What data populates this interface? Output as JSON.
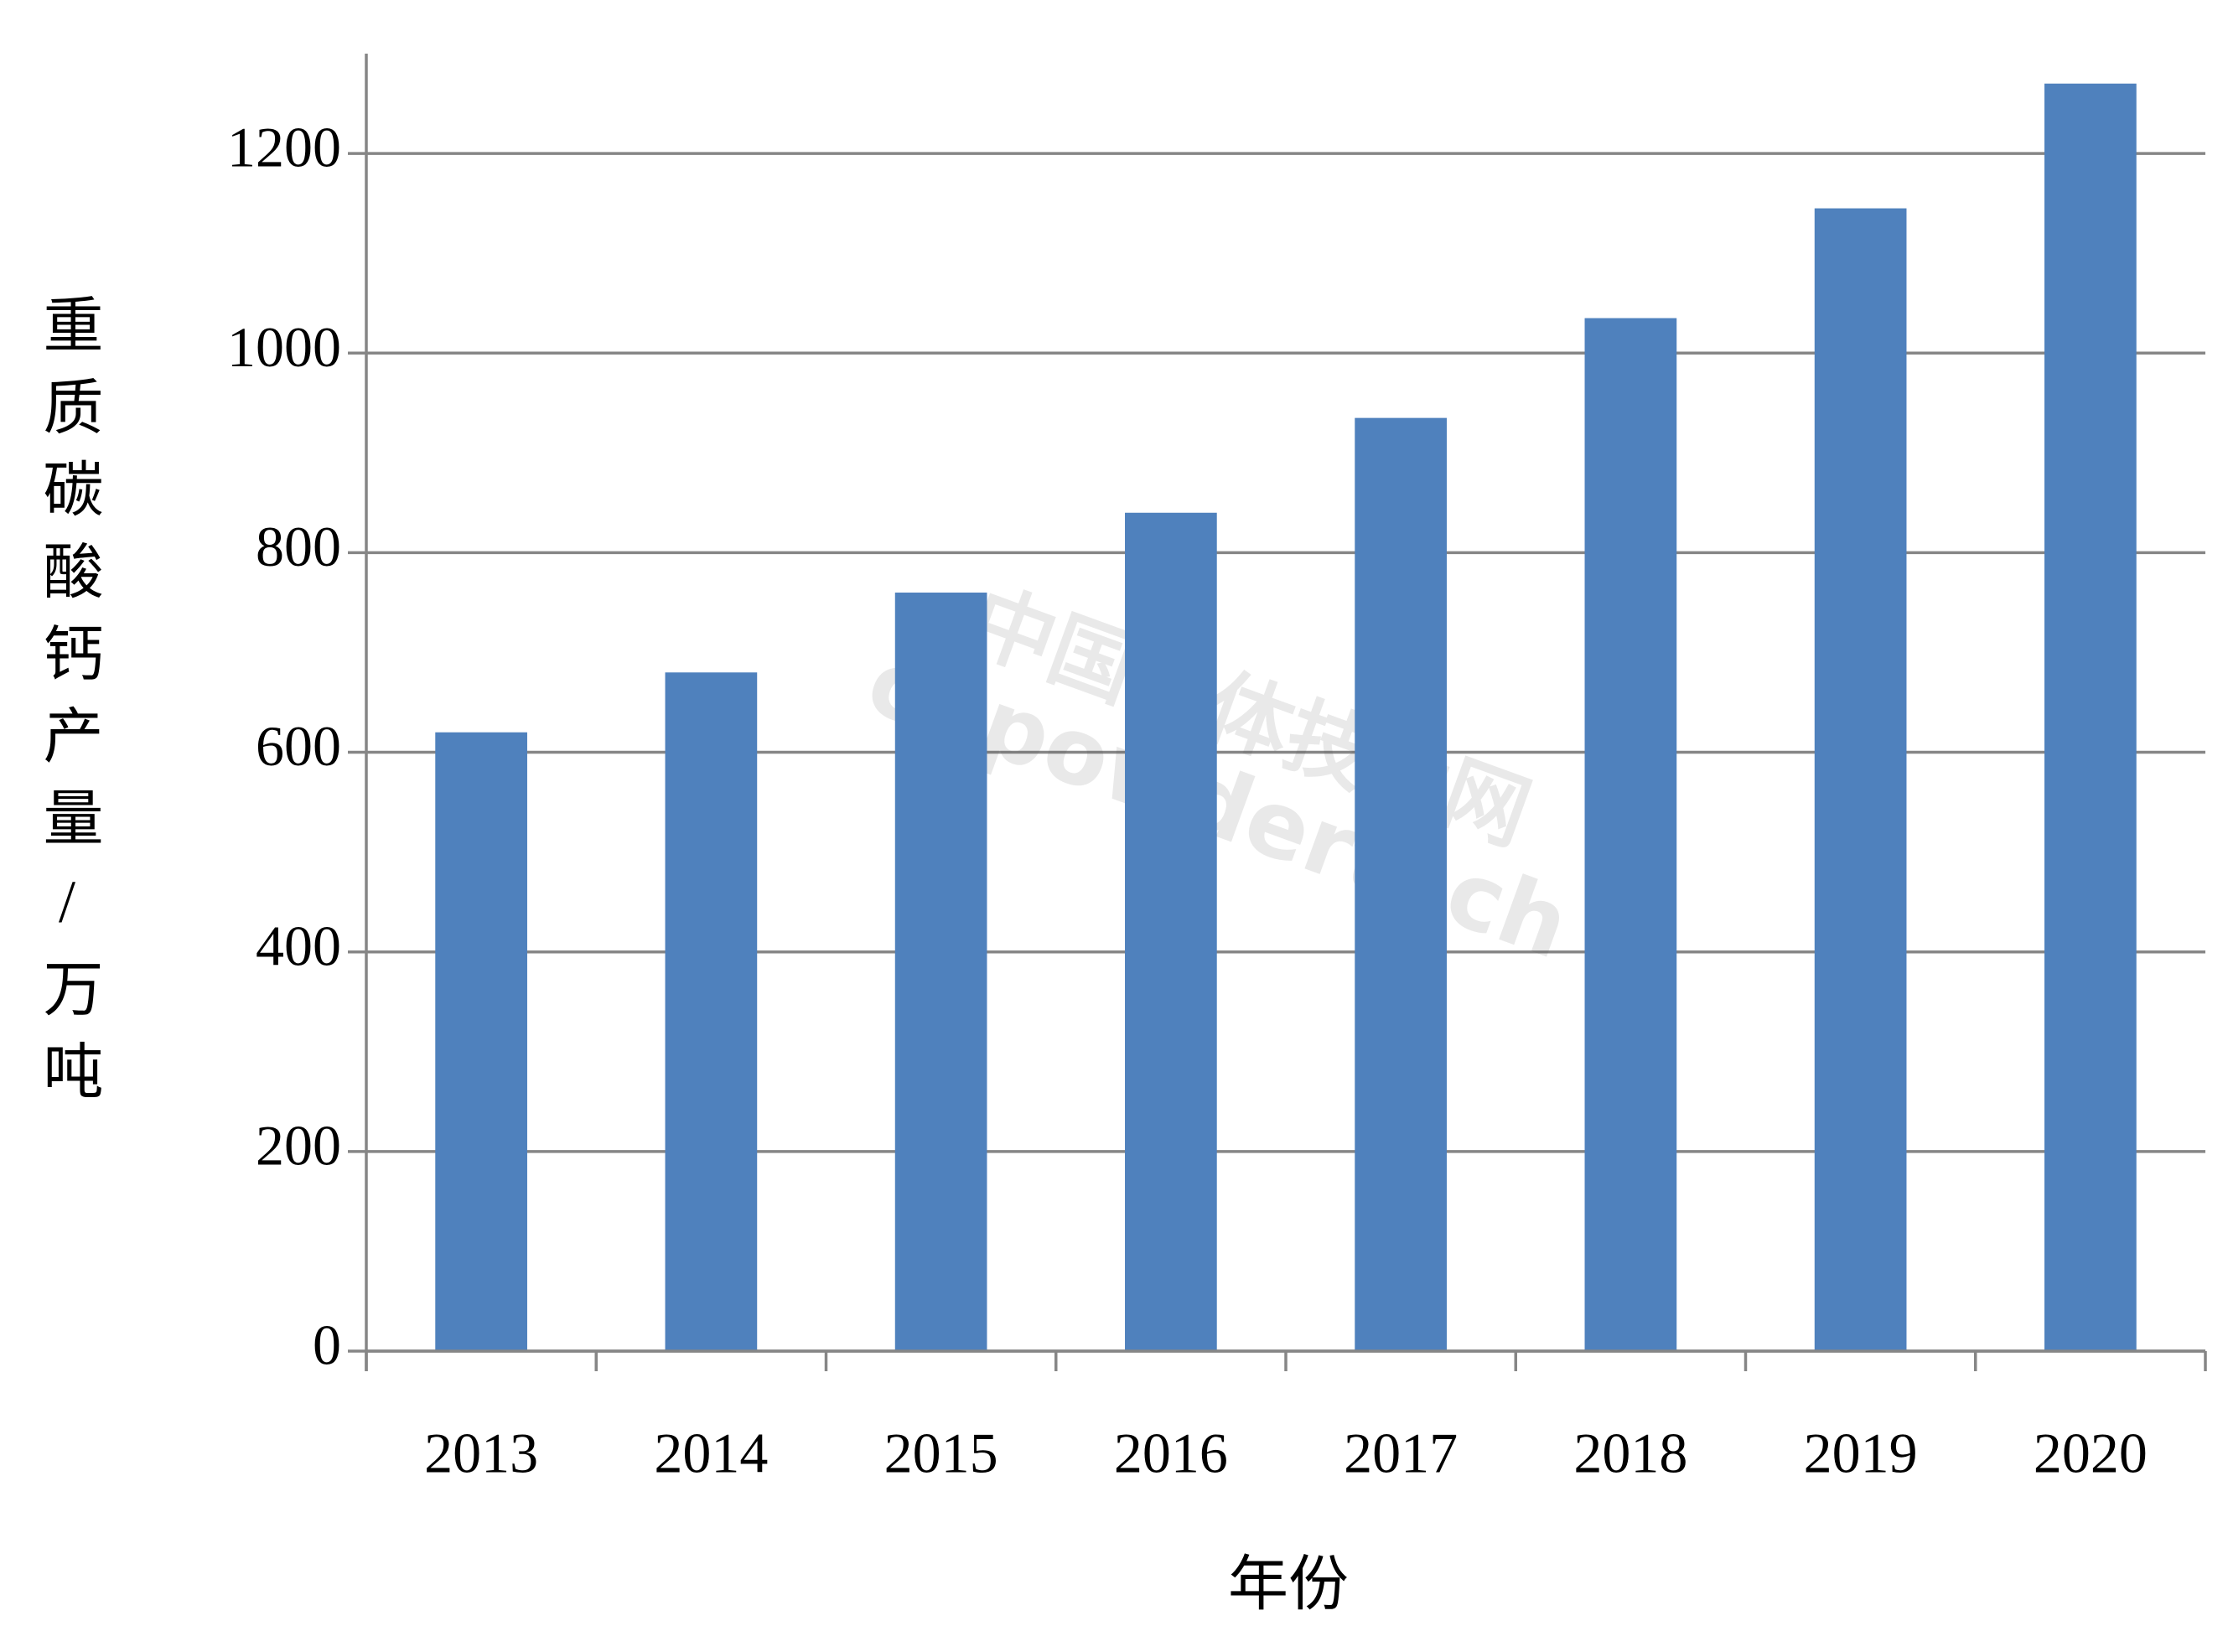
{
  "chart_data": {
    "type": "bar",
    "categories": [
      "2013",
      "2014",
      "2015",
      "2016",
      "2017",
      "2018",
      "2019",
      "2020"
    ],
    "values": [
      620,
      680,
      760,
      840,
      935,
      1035,
      1145,
      1270
    ],
    "color": "#4f81bd",
    "ylim": [
      0,
      1300
    ],
    "yticks": [
      0,
      200,
      400,
      600,
      800,
      1000,
      1200
    ],
    "grid": true,
    "x_label": "年份",
    "y_label": "重质碳酸钙产量/万吨",
    "watermark": [
      "中国粉体技术网",
      "cnpowdertech"
    ]
  }
}
